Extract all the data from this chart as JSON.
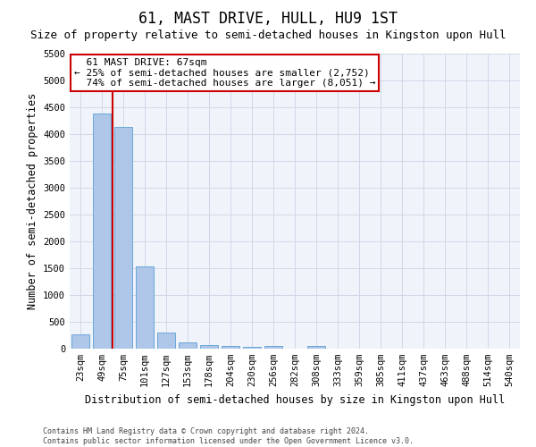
{
  "title": "61, MAST DRIVE, HULL, HU9 1ST",
  "subtitle": "Size of property relative to semi-detached houses in Kingston upon Hull",
  "xlabel": "Distribution of semi-detached houses by size in Kingston upon Hull",
  "ylabel": "Number of semi-detached properties",
  "footer_line1": "Contains HM Land Registry data © Crown copyright and database right 2024.",
  "footer_line2": "Contains public sector information licensed under the Open Government Licence v3.0.",
  "categories": [
    "23sqm",
    "49sqm",
    "75sqm",
    "101sqm",
    "127sqm",
    "153sqm",
    "178sqm",
    "204sqm",
    "230sqm",
    "256sqm",
    "282sqm",
    "308sqm",
    "333sqm",
    "359sqm",
    "385sqm",
    "411sqm",
    "437sqm",
    "463sqm",
    "488sqm",
    "514sqm",
    "540sqm"
  ],
  "values": [
    270,
    4380,
    4130,
    1530,
    300,
    120,
    65,
    45,
    35,
    50,
    0,
    50,
    0,
    0,
    0,
    0,
    0,
    0,
    0,
    0,
    0
  ],
  "bar_color": "#aec6e8",
  "bar_edge_color": "#5a9fd4",
  "property_label": "61 MAST DRIVE: 67sqm",
  "pct_smaller": 25,
  "pct_smaller_count": "2,752",
  "pct_larger": 74,
  "pct_larger_count": "8,051",
  "red_line_color": "#cc0000",
  "annotation_box_color": "#cc0000",
  "ylim": [
    0,
    5500
  ],
  "yticks": [
    0,
    500,
    1000,
    1500,
    2000,
    2500,
    3000,
    3500,
    4000,
    4500,
    5000,
    5500
  ],
  "grid_color": "#d0d8e8",
  "bg_color": "#f0f4fa",
  "title_fontsize": 12,
  "subtitle_fontsize": 9,
  "axis_label_fontsize": 8.5,
  "tick_fontsize": 7.5,
  "annotation_fontsize": 8,
  "red_line_x": 1.5
}
